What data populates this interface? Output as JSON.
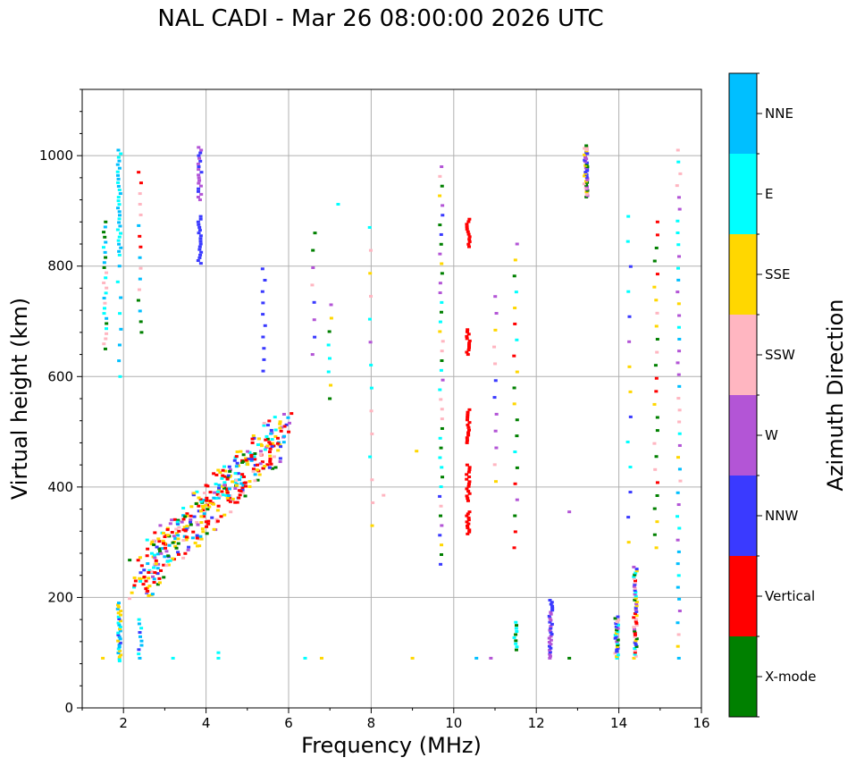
{
  "chart_data": {
    "type": "scatter",
    "title": "NAL CADI - Mar 26 08:00:00 2026 UTC",
    "xlabel": "Frequency (MHz)",
    "ylabel": "Virtual height (km)",
    "xlim": [
      1,
      16
    ],
    "ylim": [
      0,
      1120
    ],
    "xticks": [
      2,
      4,
      6,
      8,
      10,
      12,
      14,
      16
    ],
    "yticks": [
      0,
      200,
      400,
      600,
      800,
      1000
    ],
    "grid": true,
    "colorbar": {
      "label": "Azimuth Direction",
      "entries": [
        {
          "name": "X-mode",
          "color": "#008000"
        },
        {
          "name": "Vertical",
          "color": "#ff0000"
        },
        {
          "name": "NNW",
          "color": "#3a3aff"
        },
        {
          "name": "W",
          "color": "#b355d6"
        },
        {
          "name": "SSW",
          "color": "#ffb6c1"
        },
        {
          "name": "SSE",
          "color": "#ffd700"
        },
        {
          "name": "E",
          "color": "#00ffff"
        },
        {
          "name": "NNE",
          "color": "#00bfff"
        }
      ]
    },
    "trace": {
      "f_start": 2.3,
      "h_start": 230,
      "f_end": 5.9,
      "h_end": 500,
      "echoes": 420
    },
    "columns": [
      {
        "f": 1.55,
        "h0": 650,
        "h1": 880,
        "n": 26,
        "c": [
          "NNE",
          "E",
          "SSW",
          "X-mode"
        ]
      },
      {
        "f": 1.9,
        "h0": 820,
        "h1": 1010,
        "n": 30,
        "c": [
          "NNE",
          "E"
        ]
      },
      {
        "f": 1.9,
        "h0": 600,
        "h1": 800,
        "n": 8,
        "c": [
          "E",
          "NNE"
        ]
      },
      {
        "f": 1.9,
        "h0": 85,
        "h1": 190,
        "n": 30,
        "c": [
          "NNW",
          "E",
          "NNE",
          "SSE"
        ]
      },
      {
        "f": 2.4,
        "h0": 680,
        "h1": 970,
        "n": 16,
        "c": [
          "NNE",
          "SSW",
          "Vertical",
          "X-mode"
        ]
      },
      {
        "f": 2.4,
        "h0": 90,
        "h1": 160,
        "n": 10,
        "c": [
          "NNE",
          "E",
          "NNW"
        ]
      },
      {
        "f": 3.85,
        "h0": 920,
        "h1": 1015,
        "n": 20,
        "c": [
          "NNW",
          "W"
        ]
      },
      {
        "f": 3.85,
        "h0": 805,
        "h1": 890,
        "n": 18,
        "c": [
          "NNW"
        ]
      },
      {
        "f": 5.4,
        "h0": 610,
        "h1": 795,
        "n": 10,
        "c": [
          "NNW"
        ]
      },
      {
        "f": 6.6,
        "h0": 640,
        "h1": 860,
        "n": 8,
        "c": [
          "NNW",
          "W",
          "SSW",
          "X-mode"
        ]
      },
      {
        "f": 7.0,
        "h0": 560,
        "h1": 730,
        "n": 8,
        "c": [
          "SSE",
          "X-mode",
          "W",
          "E"
        ]
      },
      {
        "f": 8.0,
        "h0": 330,
        "h1": 870,
        "n": 14,
        "c": [
          "SSE",
          "W",
          "E",
          "SSW"
        ]
      },
      {
        "f": 9.7,
        "h0": 260,
        "h1": 980,
        "n": 42,
        "c": [
          "SSE",
          "W",
          "NNW",
          "E",
          "SSW",
          "X-mode"
        ]
      },
      {
        "f": 10.35,
        "h0": 315,
        "h1": 355,
        "n": 12,
        "c": [
          "Vertical"
        ]
      },
      {
        "f": 10.35,
        "h0": 375,
        "h1": 440,
        "n": 16,
        "c": [
          "Vertical"
        ]
      },
      {
        "f": 10.35,
        "h0": 480,
        "h1": 540,
        "n": 14,
        "c": [
          "Vertical"
        ]
      },
      {
        "f": 10.35,
        "h0": 640,
        "h1": 685,
        "n": 12,
        "c": [
          "Vertical"
        ]
      },
      {
        "f": 10.35,
        "h0": 835,
        "h1": 885,
        "n": 12,
        "c": [
          "Vertical"
        ]
      },
      {
        "f": 11.0,
        "h0": 410,
        "h1": 745,
        "n": 12,
        "c": [
          "SSE",
          "SSW",
          "W",
          "NNW"
        ]
      },
      {
        "f": 11.5,
        "h0": 290,
        "h1": 840,
        "n": 20,
        "c": [
          "X-mode",
          "E",
          "SSW",
          "W",
          "Vertical",
          "SSE"
        ]
      },
      {
        "f": 11.5,
        "h0": 105,
        "h1": 155,
        "n": 10,
        "c": [
          "X-mode",
          "E"
        ]
      },
      {
        "f": 12.35,
        "h0": 90,
        "h1": 195,
        "n": 30,
        "c": [
          "NNW",
          "W"
        ]
      },
      {
        "f": 13.2,
        "h0": 925,
        "h1": 1018,
        "n": 40,
        "c": [
          "NNW",
          "W",
          "X-mode",
          "SSE",
          "SSW"
        ]
      },
      {
        "f": 13.95,
        "h0": 90,
        "h1": 165,
        "n": 26,
        "c": [
          "SSE",
          "W",
          "NNW",
          "E",
          "SSW",
          "X-mode"
        ]
      },
      {
        "f": 14.25,
        "h0": 300,
        "h1": 890,
        "n": 14,
        "c": [
          "SSE",
          "W",
          "E",
          "NNW"
        ]
      },
      {
        "f": 14.4,
        "h0": 90,
        "h1": 255,
        "n": 48,
        "c": [
          "SSE",
          "E",
          "NNW",
          "Vertical",
          "SSW",
          "W",
          "X-mode"
        ]
      },
      {
        "f": 14.9,
        "h0": 290,
        "h1": 880,
        "n": 26,
        "c": [
          "Vertical",
          "SSE",
          "SSW",
          "X-mode"
        ]
      },
      {
        "f": 15.45,
        "h0": 90,
        "h1": 1010,
        "n": 44,
        "c": [
          "SSW",
          "SSE",
          "E",
          "W",
          "NNE"
        ]
      }
    ],
    "low_echoes": [
      {
        "f": 1.5,
        "h": 90,
        "c": "SSE"
      },
      {
        "f": 3.2,
        "h": 90,
        "c": "E"
      },
      {
        "f": 4.3,
        "h": 90,
        "c": "E"
      },
      {
        "f": 4.3,
        "h": 100,
        "c": "E"
      },
      {
        "f": 6.4,
        "h": 90,
        "c": "E"
      },
      {
        "f": 6.8,
        "h": 90,
        "c": "SSE"
      },
      {
        "f": 9.0,
        "h": 90,
        "c": "SSE"
      },
      {
        "f": 10.55,
        "h": 90,
        "c": "NNE"
      },
      {
        "f": 10.9,
        "h": 90,
        "c": "W"
      },
      {
        "f": 12.8,
        "h": 90,
        "c": "X-mode"
      },
      {
        "f": 12.8,
        "h": 355,
        "c": "W"
      },
      {
        "f": 7.2,
        "h": 912,
        "c": "E"
      },
      {
        "f": 8.3,
        "h": 385,
        "c": "SSW"
      },
      {
        "f": 9.1,
        "h": 465,
        "c": "SSE"
      }
    ]
  }
}
